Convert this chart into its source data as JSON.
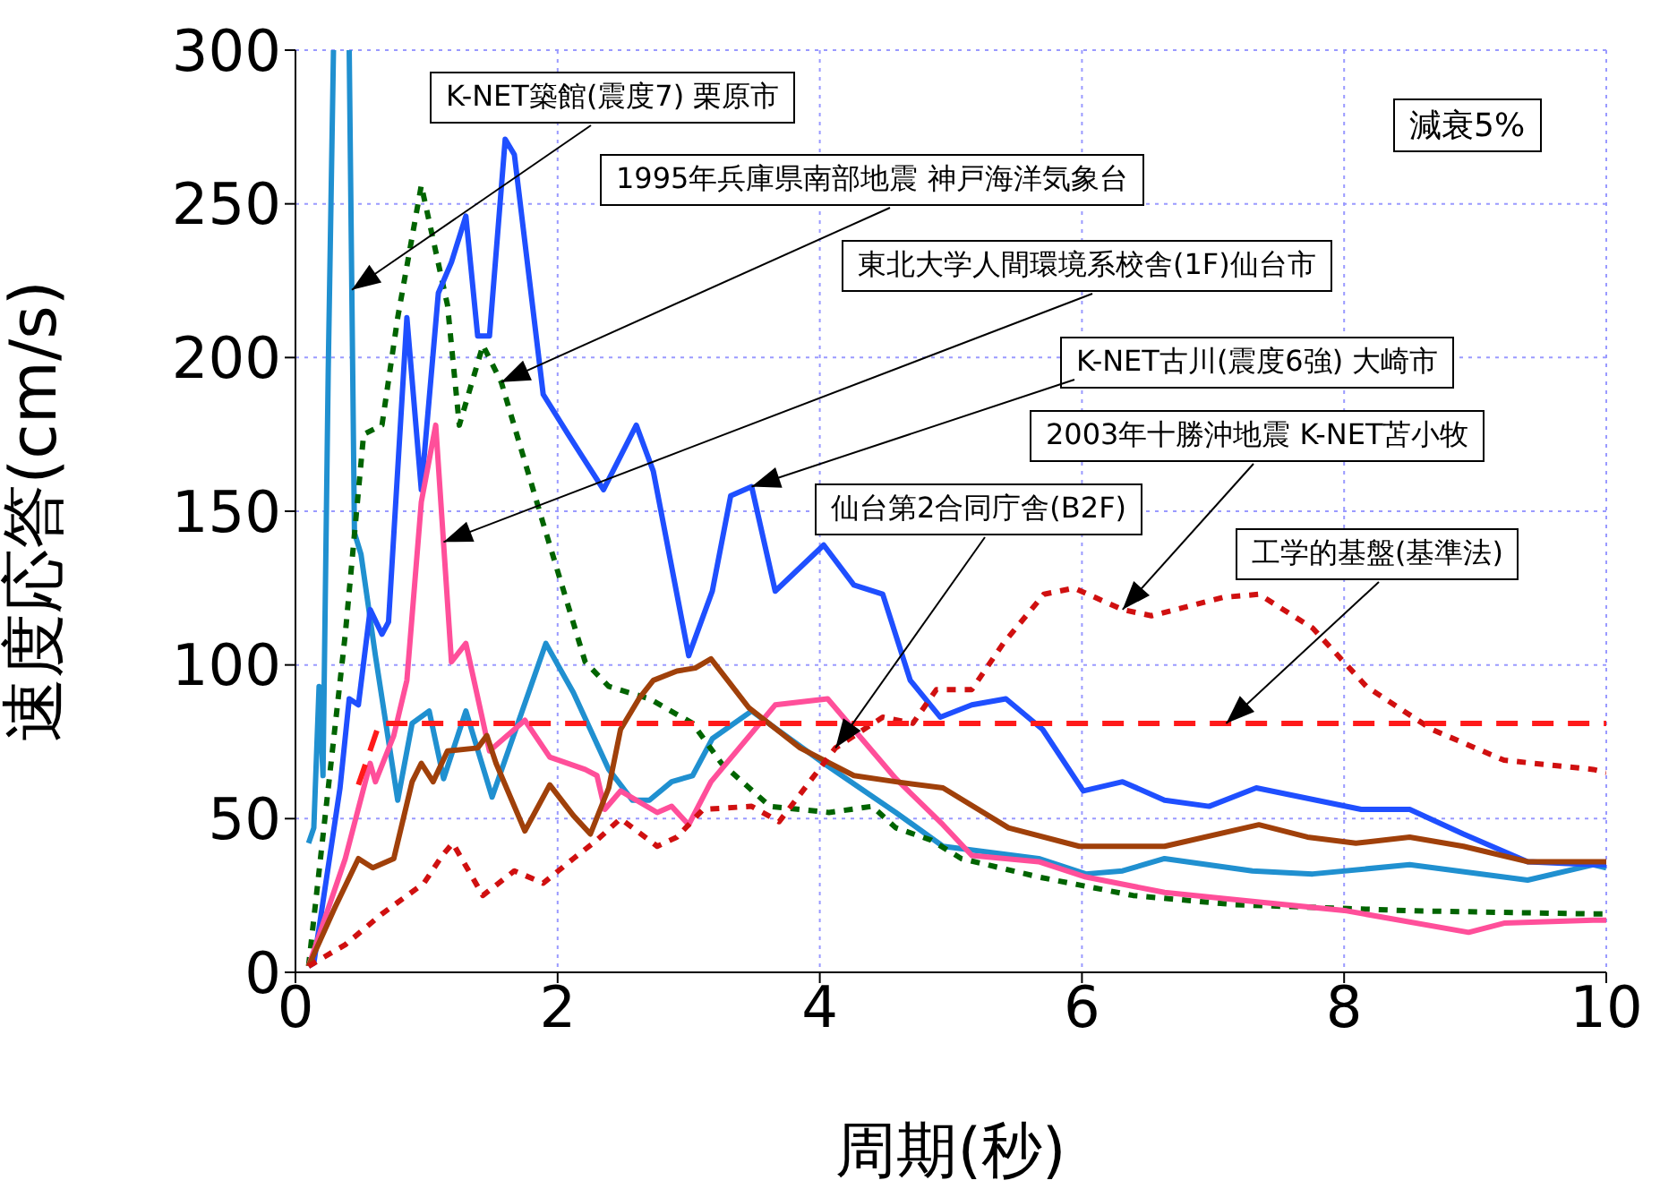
{
  "chart_data": {
    "type": "line",
    "xlabel": "周期(秒)",
    "ylabel": "速度応答(cm/s)",
    "xlim": [
      0,
      10
    ],
    "xticks": [
      0,
      2,
      4,
      6,
      8,
      10
    ],
    "ylim": [
      0,
      300
    ],
    "yticks": [
      0,
      50,
      100,
      150,
      200,
      250,
      300
    ],
    "grid": true,
    "marker": "none",
    "series": [
      {
        "color": "#2090d0",
        "line_style": "solid",
        "x": [
          0.1,
          0.14,
          0.18,
          0.21,
          0.25,
          0.29,
          0.35,
          0.41,
          0.45,
          0.5,
          0.61,
          0.78,
          0.89,
          1.02,
          1.13,
          1.3,
          1.5,
          1.91,
          2.12,
          2.39,
          2.57,
          2.7,
          2.87,
          3.03,
          3.18,
          3.48,
          4.03,
          4.58,
          4.94,
          5.67,
          6.03,
          6.31,
          6.63,
          7.3,
          7.76,
          8.5,
          9.4,
          9.9,
          10
        ],
        "values": [
          42,
          47,
          93,
          64,
          196,
          300,
          null,
          300,
          143,
          136,
          103,
          56,
          81,
          85,
          63,
          85,
          57,
          107,
          91,
          66,
          56,
          56,
          62,
          64,
          76,
          85,
          68,
          52,
          41,
          37,
          32,
          33,
          37,
          33,
          32,
          35,
          30,
          35,
          34
        ]
      },
      {
        "color": "#006400",
        "line_style": "dotted",
        "x": [
          0.1,
          0.38,
          0.52,
          0.66,
          0.78,
          0.96,
          1.16,
          1.25,
          1.43,
          1.57,
          1.89,
          2.21,
          2.39,
          2.7,
          3.03,
          3.25,
          3.62,
          4.07,
          4.4,
          4.58,
          4.85,
          5.08,
          5.67,
          6.39,
          7.17,
          8.54,
          9.9,
          10
        ],
        "values": [
          2,
          110,
          175,
          178,
          213,
          256,
          217,
          178,
          204,
          192,
          146,
          101,
          93,
          89,
          81,
          68,
          54,
          52,
          54,
          47,
          43,
          37,
          31,
          25,
          22,
          20,
          19,
          19
        ]
      },
      {
        "color": "#1f4fff",
        "line_style": "solid",
        "x": [
          0.1,
          0.14,
          0.34,
          0.41,
          0.48,
          0.57,
          0.66,
          0.71,
          0.85,
          0.96,
          1.09,
          1.19,
          1.3,
          1.39,
          1.48,
          1.6,
          1.67,
          1.89,
          2.08,
          2.35,
          2.6,
          2.73,
          3.0,
          3.18,
          3.32,
          3.48,
          3.66,
          4.03,
          4.26,
          4.48,
          4.69,
          4.92,
          5.16,
          5.42,
          5.7,
          6.01,
          6.31,
          6.63,
          6.97,
          7.33,
          8.13,
          8.5,
          8.91,
          9.4,
          9.9,
          10
        ],
        "values": [
          2,
          3,
          60,
          89,
          87,
          118,
          110,
          114,
          213,
          157,
          221,
          231,
          246,
          207,
          207,
          271,
          266,
          188,
          175,
          157,
          178,
          163,
          103,
          124,
          155,
          158,
          124,
          139,
          126,
          123,
          95,
          83,
          87,
          89,
          79,
          59,
          62,
          56,
          54,
          60,
          53,
          53,
          45,
          36,
          35,
          35
        ]
      },
      {
        "color": "#ff4f9a",
        "line_style": "solid",
        "x": [
          0.1,
          0.38,
          0.57,
          0.61,
          0.75,
          0.85,
          0.96,
          1.07,
          1.19,
          1.3,
          1.48,
          1.75,
          1.94,
          2.21,
          2.3,
          2.36,
          2.48,
          2.76,
          2.87,
          3.0,
          3.17,
          3.66,
          4.06,
          4.58,
          4.94,
          5.16,
          5.67,
          6.03,
          6.63,
          7.08,
          8.02,
          8.95,
          9.22,
          9.9,
          10
        ],
        "values": [
          2,
          37,
          68,
          62,
          77,
          95,
          153,
          178,
          101,
          107,
          72,
          82,
          70,
          66,
          64,
          53,
          59,
          52,
          54,
          48,
          62,
          87,
          89,
          63,
          48,
          38,
          36,
          31,
          26,
          24,
          20,
          13,
          16,
          17,
          17
        ]
      },
      {
        "color": "#a0400a",
        "line_style": "solid",
        "x": [
          0.1,
          0.3,
          0.48,
          0.59,
          0.75,
          0.89,
          0.96,
          1.05,
          1.16,
          1.39,
          1.46,
          1.53,
          1.75,
          1.94,
          2.12,
          2.25,
          2.39,
          2.48,
          2.62,
          2.73,
          2.91,
          3.05,
          3.17,
          3.46,
          3.85,
          4.26,
          4.58,
          4.94,
          5.44,
          5.98,
          6.63,
          7.35,
          7.72,
          8.09,
          8.5,
          8.91,
          9.4,
          9.9,
          10
        ],
        "values": [
          2,
          21,
          37,
          34,
          37,
          62,
          68,
          62,
          72,
          73,
          77,
          68,
          46,
          61,
          51,
          45,
          60,
          79,
          89,
          95,
          98,
          99,
          102,
          86,
          73,
          64,
          62,
          60,
          47,
          41,
          41,
          48,
          44,
          42,
          44,
          41,
          36,
          36,
          36
        ]
      },
      {
        "color": "#d01010",
        "line_style": "dotted",
        "x": [
          0.1,
          0.38,
          0.66,
          0.98,
          1.12,
          1.2,
          1.43,
          1.67,
          1.89,
          2.12,
          2.3,
          2.48,
          2.76,
          2.91,
          3.11,
          3.48,
          3.69,
          4.03,
          4.12,
          4.48,
          4.71,
          4.89,
          5.16,
          5.4,
          5.71,
          5.94,
          6.31,
          6.53,
          7.08,
          7.35,
          7.76,
          8.17,
          8.67,
          9.22,
          9.9,
          10
        ],
        "values": [
          2,
          9,
          19,
          29,
          38,
          42,
          25,
          33,
          29,
          37,
          43,
          50,
          41,
          44,
          53,
          54,
          49,
          68,
          73,
          83,
          81,
          92,
          92,
          107,
          123,
          125,
          118,
          116,
          122,
          123,
          112,
          93,
          79,
          69,
          66,
          65
        ]
      },
      {
        "color": "#ff1a1a",
        "line_style": "dashed",
        "x": [
          0.48,
          0.64,
          10
        ],
        "values": [
          61,
          81,
          81
        ]
      }
    ],
    "annotations": [
      {
        "text": "K-NET築館(震度7) 栗原市",
        "x": 0.43,
        "y": 222
      },
      {
        "text": "1995年兵庫県南部地震  神戸海洋気象台",
        "x": 1.57,
        "y": 192
      },
      {
        "text": "東北大学人間環境系校舎(1F)仙台市",
        "x": 1.13,
        "y": 140
      },
      {
        "text": "K-NET古川(震度6強) 大崎市",
        "x": 3.48,
        "y": 158
      },
      {
        "text": "2003年十勝沖地震  K-NET苫小牧",
        "x": 6.31,
        "y": 118
      },
      {
        "text": "仙台第2合同庁舎(B2F)",
        "x": 4.12,
        "y": 73
      },
      {
        "text": "工学的基盤(基準法)",
        "x": 7.1,
        "y": 81
      },
      "減衰5%"
    ]
  }
}
